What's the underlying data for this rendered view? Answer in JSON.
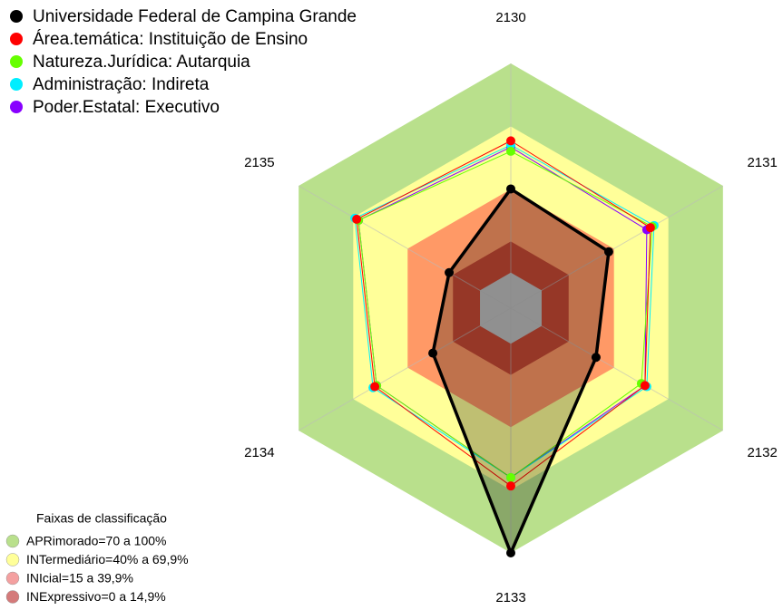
{
  "chart_data": {
    "type": "radar",
    "categories": [
      "2130",
      "2131",
      "2132",
      "2133",
      "2134",
      "2135"
    ],
    "ylim": [
      -17,
      100
    ],
    "grid": true,
    "series": [
      {
        "name": "Universidade Federal de Campina Grande",
        "color": "#000000",
        "fill": true,
        "values": [
          40,
          37,
          30,
          100,
          26,
          17
        ]
      },
      {
        "name": "Área.temática: Instituição de Ensino",
        "color": "#ff0000",
        "fill": false,
        "values": [
          63,
          60,
          57,
          68,
          58,
          68
        ]
      },
      {
        "name": "Natureza.Jurídica: Autarquia",
        "color": "#66ff00",
        "fill": false,
        "values": [
          58,
          61,
          55,
          64,
          57,
          67
        ]
      },
      {
        "name": "Administração: Indireta",
        "color": "#00eeff",
        "fill": false,
        "values": [
          61,
          62,
          58,
          64,
          59,
          69
        ]
      },
      {
        "name": "Poder.Estatal: Executivo",
        "color": "#8800ff",
        "fill": false,
        "values": [
          60,
          58,
          57,
          64,
          57,
          67
        ]
      }
    ],
    "bands_title": "Faixas de classificação",
    "bands": [
      {
        "name": "APRimorado=70 a 100%",
        "from": 70,
        "to": 100,
        "color": "#b9e08c",
        "legend_color": "#b9e08c"
      },
      {
        "name": "INTermediário=40% a 69,9%",
        "from": 40,
        "to": 69.9,
        "color": "#ffff99",
        "legend_color": "#ffff99"
      },
      {
        "name": "INIcial=15 a 39,9%",
        "from": 15,
        "to": 39.9,
        "color": "#ff9966",
        "legend_color": "#f4a0a0"
      },
      {
        "name": "INExpressivo=0 a 14,9%",
        "from": 0,
        "to": 14.9,
        "color": "#c84a35",
        "legend_color": "#d47a7a"
      }
    ]
  }
}
